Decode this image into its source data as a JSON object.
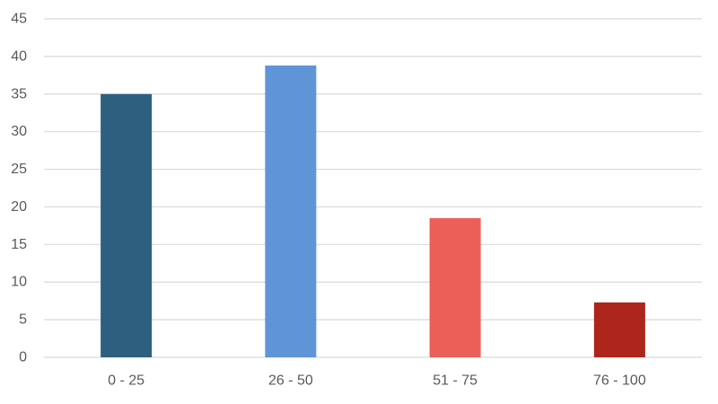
{
  "chart_data": {
    "type": "bar",
    "categories": [
      "0 - 25",
      "26 - 50",
      "51 - 75",
      "76 - 100"
    ],
    "values": [
      35,
      38.8,
      18.5,
      7.3
    ],
    "bar_colors": [
      "#2e5f7f",
      "#5f95d6",
      "#ec5f58",
      "#ad251b"
    ],
    "title": "",
    "xlabel": "",
    "ylabel": "",
    "ylim": [
      0,
      45
    ],
    "yticks": [
      0,
      5,
      10,
      15,
      20,
      25,
      30,
      35,
      40,
      45
    ],
    "grid": true,
    "legend": "none"
  },
  "colors": {
    "grid": "#d9d9d9",
    "tick_text": "#595959"
  }
}
